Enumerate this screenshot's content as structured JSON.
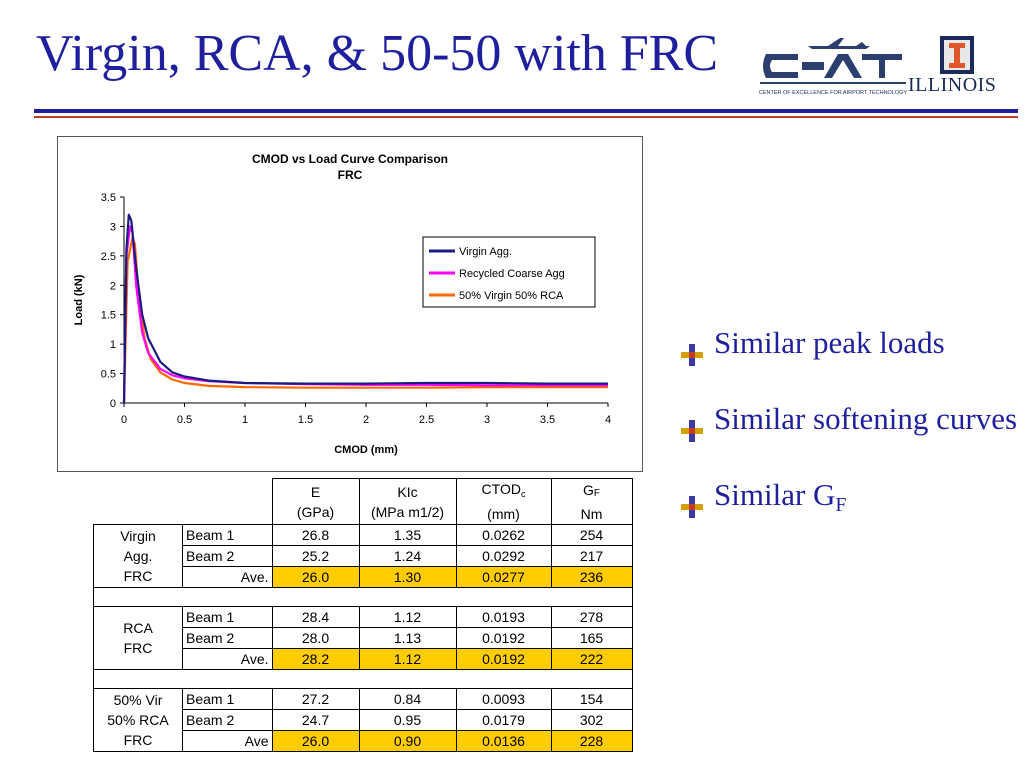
{
  "slide": {
    "title": "Virgin, RCA, & 50-50 with FRC",
    "accent_color": "#1f1f9e",
    "rule_color": "#c23a2a"
  },
  "logos": {
    "cefat_caption": "CENTER OF EXCELLENCE FOR AIRPORT TECHNOLOGY",
    "illinois_word": "ILLINOIS",
    "illinois_badge": "I"
  },
  "chart_data": {
    "type": "line",
    "title": "CMOD vs Load Curve Comparison",
    "subtitle": "FRC",
    "xlabel": "CMOD (mm)",
    "ylabel": "Load (kN)",
    "xlim": [
      0,
      4
    ],
    "ylim": [
      0,
      3.5
    ],
    "x_ticks": [
      "0",
      "0.5",
      "1",
      "1.5",
      "2",
      "2.5",
      "3",
      "3.5",
      "4"
    ],
    "y_ticks": [
      "0",
      "0.5",
      "1",
      "1.5",
      "2",
      "2.5",
      "3",
      "3.5"
    ],
    "grid": false,
    "legend_position": "top-right",
    "series": [
      {
        "name": "Virgin Agg.",
        "color": "#1a1a80",
        "points": [
          [
            0,
            0
          ],
          [
            0.02,
            2.6
          ],
          [
            0.04,
            3.2
          ],
          [
            0.06,
            3.1
          ],
          [
            0.1,
            2.3
          ],
          [
            0.15,
            1.5
          ],
          [
            0.2,
            1.1
          ],
          [
            0.3,
            0.7
          ],
          [
            0.4,
            0.52
          ],
          [
            0.5,
            0.45
          ],
          [
            0.7,
            0.38
          ],
          [
            1.0,
            0.34
          ],
          [
            1.5,
            0.33
          ],
          [
            2.0,
            0.33
          ],
          [
            2.5,
            0.34
          ],
          [
            3.0,
            0.34
          ],
          [
            3.5,
            0.33
          ],
          [
            4.0,
            0.33
          ]
        ]
      },
      {
        "name": "Recycled Coarse Agg",
        "color": "#ff00ff",
        "points": [
          [
            0,
            0
          ],
          [
            0.02,
            2.5
          ],
          [
            0.05,
            3.0
          ],
          [
            0.07,
            2.9
          ],
          [
            0.1,
            2.0
          ],
          [
            0.15,
            1.2
          ],
          [
            0.2,
            0.85
          ],
          [
            0.3,
            0.58
          ],
          [
            0.4,
            0.47
          ],
          [
            0.5,
            0.42
          ],
          [
            0.7,
            0.37
          ],
          [
            1.0,
            0.34
          ],
          [
            1.5,
            0.32
          ],
          [
            2.0,
            0.31
          ],
          [
            2.5,
            0.31
          ],
          [
            3.0,
            0.3
          ],
          [
            3.5,
            0.3
          ],
          [
            4.0,
            0.3
          ]
        ]
      },
      {
        "name": "50% Virgin 50% RCA",
        "color": "#ff6a00",
        "points": [
          [
            0,
            0
          ],
          [
            0.03,
            2.4
          ],
          [
            0.07,
            2.8
          ],
          [
            0.09,
            2.7
          ],
          [
            0.12,
            1.9
          ],
          [
            0.17,
            1.1
          ],
          [
            0.22,
            0.75
          ],
          [
            0.3,
            0.52
          ],
          [
            0.4,
            0.4
          ],
          [
            0.5,
            0.34
          ],
          [
            0.7,
            0.29
          ],
          [
            1.0,
            0.27
          ],
          [
            1.5,
            0.26
          ],
          [
            2.0,
            0.26
          ],
          [
            2.5,
            0.26
          ],
          [
            3.0,
            0.27
          ],
          [
            3.5,
            0.27
          ],
          [
            4.0,
            0.27
          ]
        ]
      }
    ]
  },
  "bullets": {
    "b1": "Similar peak loads",
    "b2": "Similar softening curves",
    "b3_main": "Similar G",
    "b3_sub": "F"
  },
  "table": {
    "header": {
      "e_top": "E",
      "e_unit": "(GPa)",
      "k_top": "KIc",
      "k_unit": "(MPa m1/2)",
      "c_top": "CTOD",
      "c_sub": "c",
      "c_unit": "(mm)",
      "g_top": "G",
      "g_sub": "F",
      "g_unit": "Nm"
    },
    "groups": [
      {
        "label_lines": [
          "Virgin",
          "Agg.",
          "FRC"
        ],
        "rows": [
          {
            "name": "Beam 1",
            "e": "26.8",
            "k": "1.35",
            "c": "0.0262",
            "g": "254"
          },
          {
            "name": "Beam 2",
            "e": "25.2",
            "k": "1.24",
            "c": "0.0292",
            "g": "217"
          },
          {
            "name": "Ave.",
            "e": "26.0",
            "k": "1.30",
            "c": "0.0277",
            "g": "236"
          }
        ]
      },
      {
        "label_lines": [
          "RCA",
          "FRC"
        ],
        "rows": [
          {
            "name": "Beam 1",
            "e": "28.4",
            "k": "1.12",
            "c": "0.0193",
            "g": "278"
          },
          {
            "name": "Beam 2",
            "e": "28.0",
            "k": "1.13",
            "c": "0.0192",
            "g": "165"
          },
          {
            "name": "Ave.",
            "e": "28.2",
            "k": "1.12",
            "c": "0.0192",
            "g": "222"
          }
        ]
      },
      {
        "label_lines": [
          "50% Vir",
          "50% RCA",
          "FRC"
        ],
        "rows": [
          {
            "name": "Beam 1",
            "e": "27.2",
            "k": "0.84",
            "c": "0.0093",
            "g": "154"
          },
          {
            "name": "Beam 2",
            "e": "24.7",
            "k": "0.95",
            "c": "0.0179",
            "g": "302"
          },
          {
            "name": "Ave",
            "e": "26.0",
            "k": "0.90",
            "c": "0.0136",
            "g": "228"
          }
        ]
      }
    ],
    "highlight_color": "#ffcc00"
  }
}
